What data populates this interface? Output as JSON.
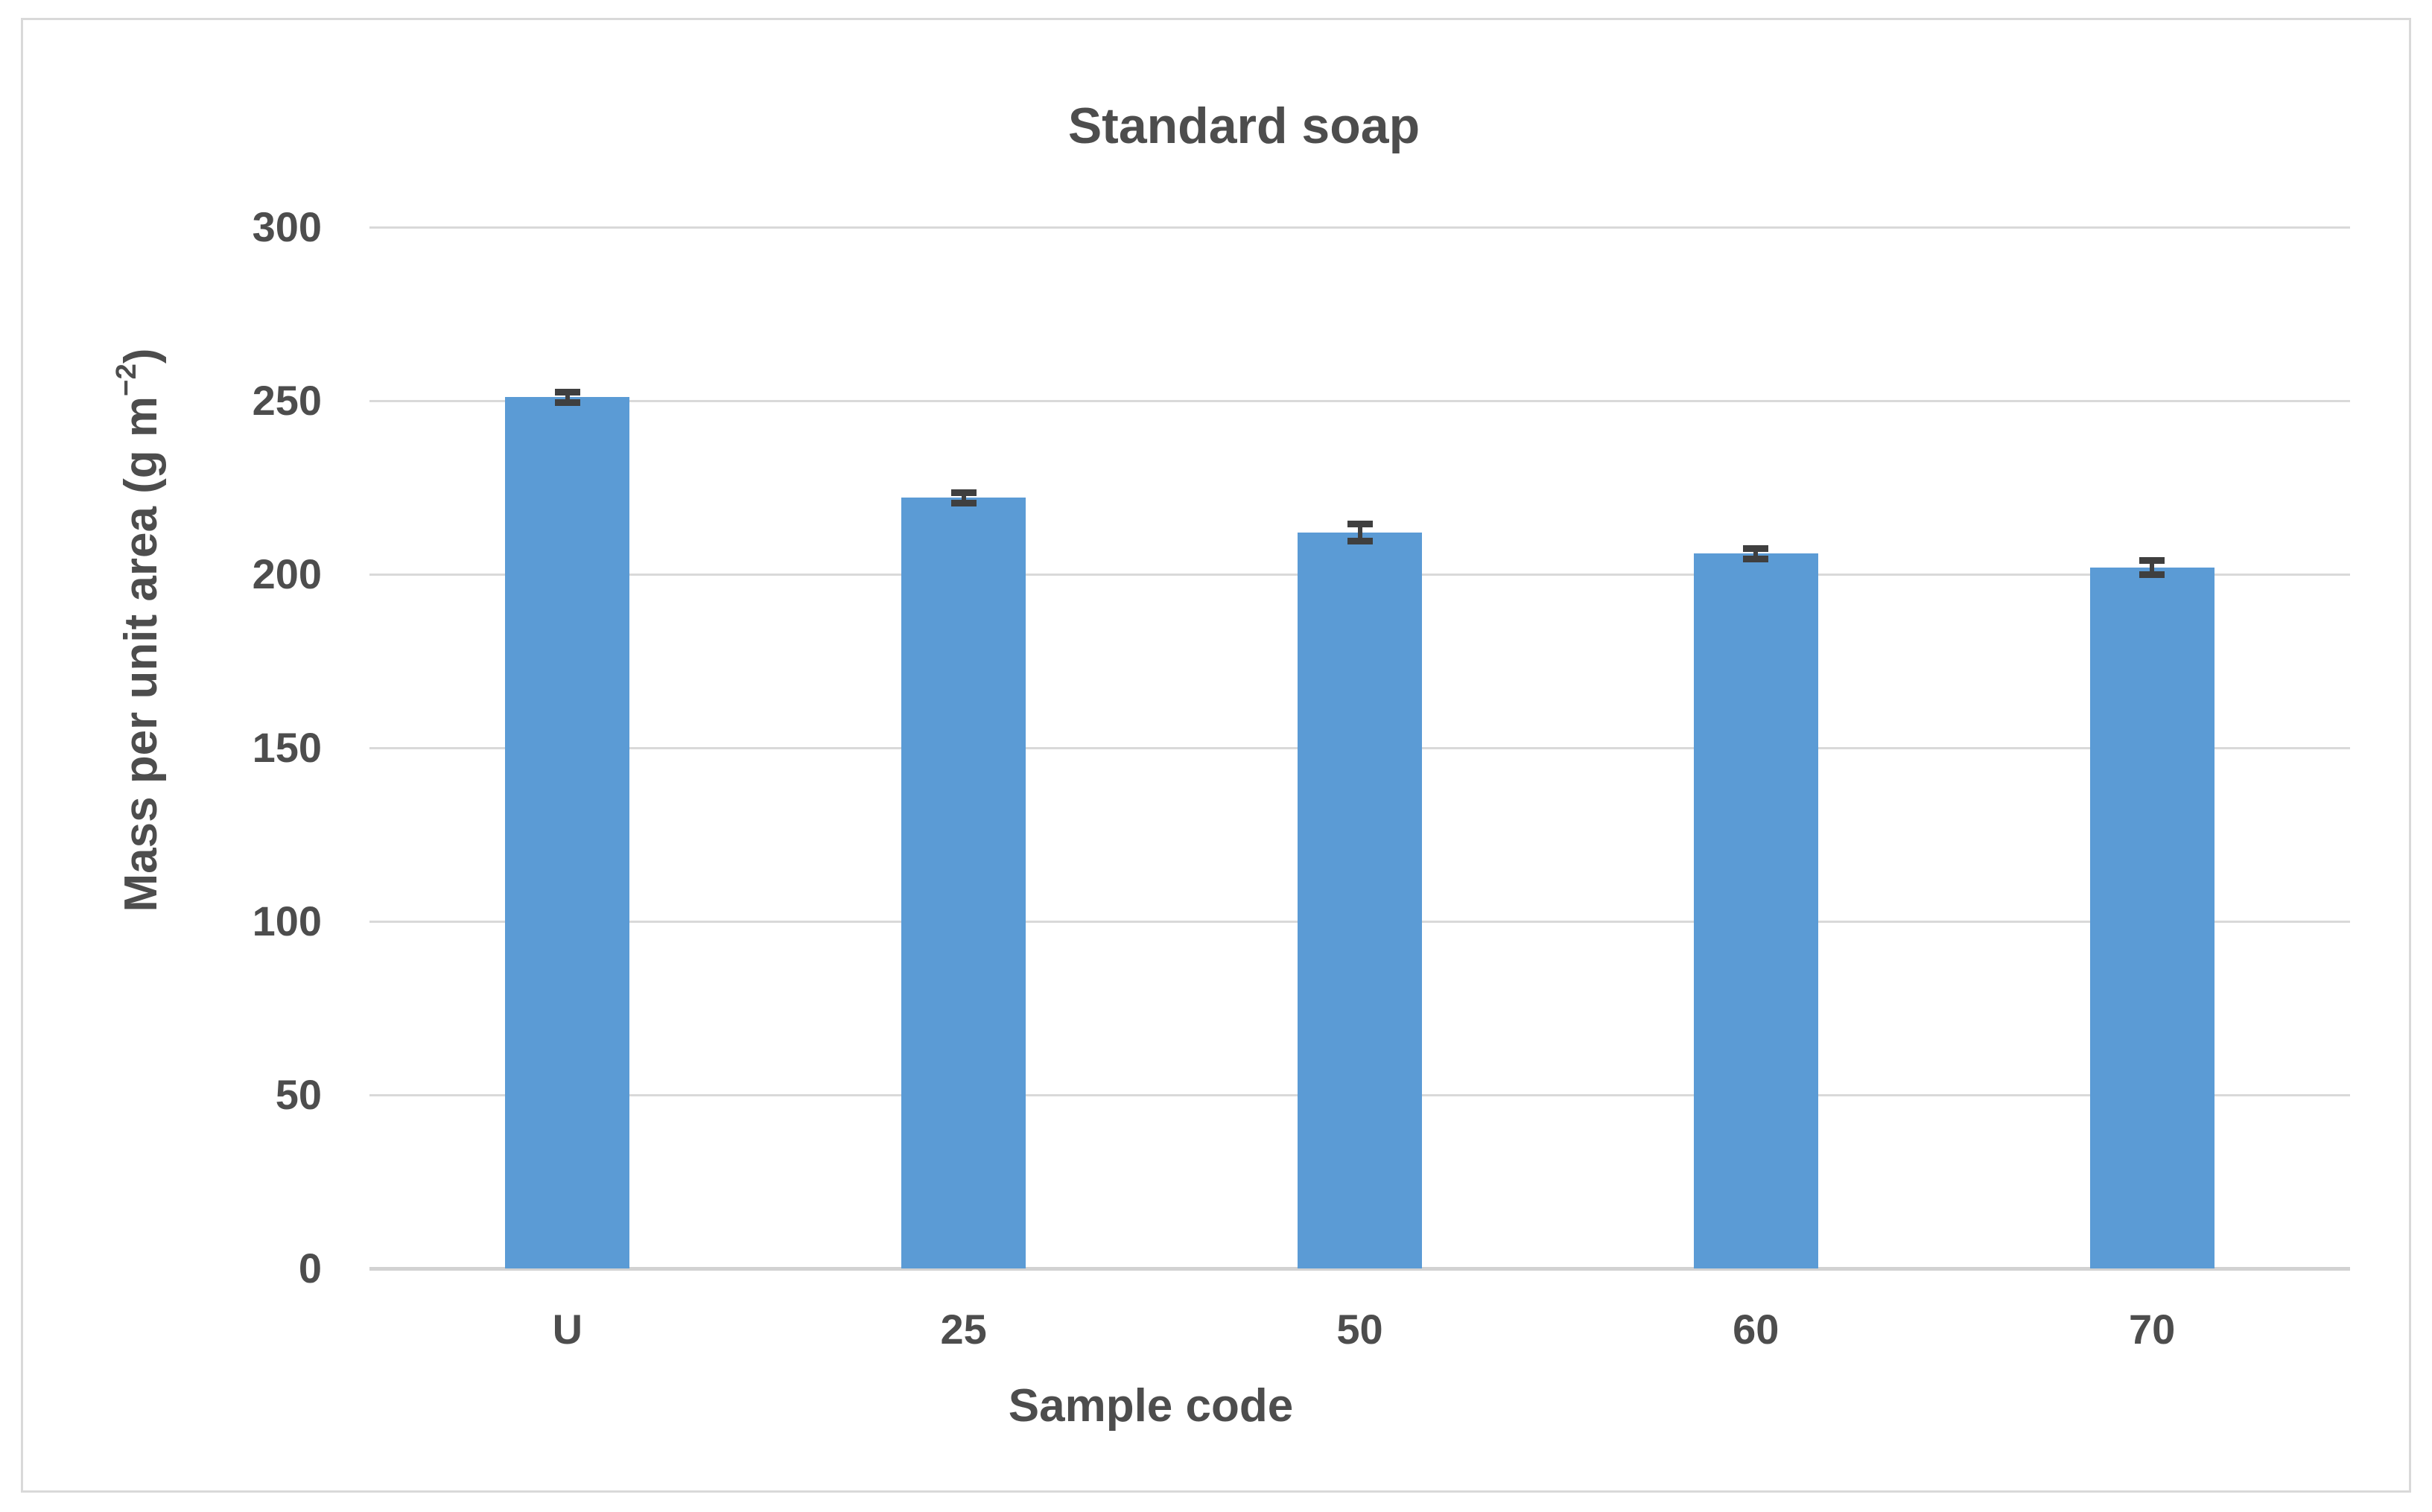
{
  "figure": {
    "y_axis_title_parts": {
      "prefix": "Mass per unit area  (g m",
      "superscript": "−2",
      "suffix": ")"
    }
  },
  "chart_data": {
    "type": "bar",
    "title": "Standard soap",
    "xlabel": "Sample code",
    "ylabel": "Mass per unit area (g m⁻²)",
    "categories": [
      "U",
      "25",
      "50",
      "60",
      "70"
    ],
    "values": [
      251,
      222,
      212,
      206,
      202
    ],
    "error_bars": [
      1.5,
      1.5,
      2.5,
      1.5,
      2
    ],
    "yticks": [
      0,
      50,
      100,
      150,
      200,
      250,
      300
    ],
    "ylim": [
      0,
      300
    ],
    "grid": true,
    "legend": "none",
    "colors": {
      "bar": "#5B9BD5",
      "error_bar": "#3F3F3F",
      "gridline": "#D9D9D9",
      "axis_text": "#4D4D4D",
      "frame_border": "#D9D9D9",
      "background": "#FFFFFF"
    }
  }
}
